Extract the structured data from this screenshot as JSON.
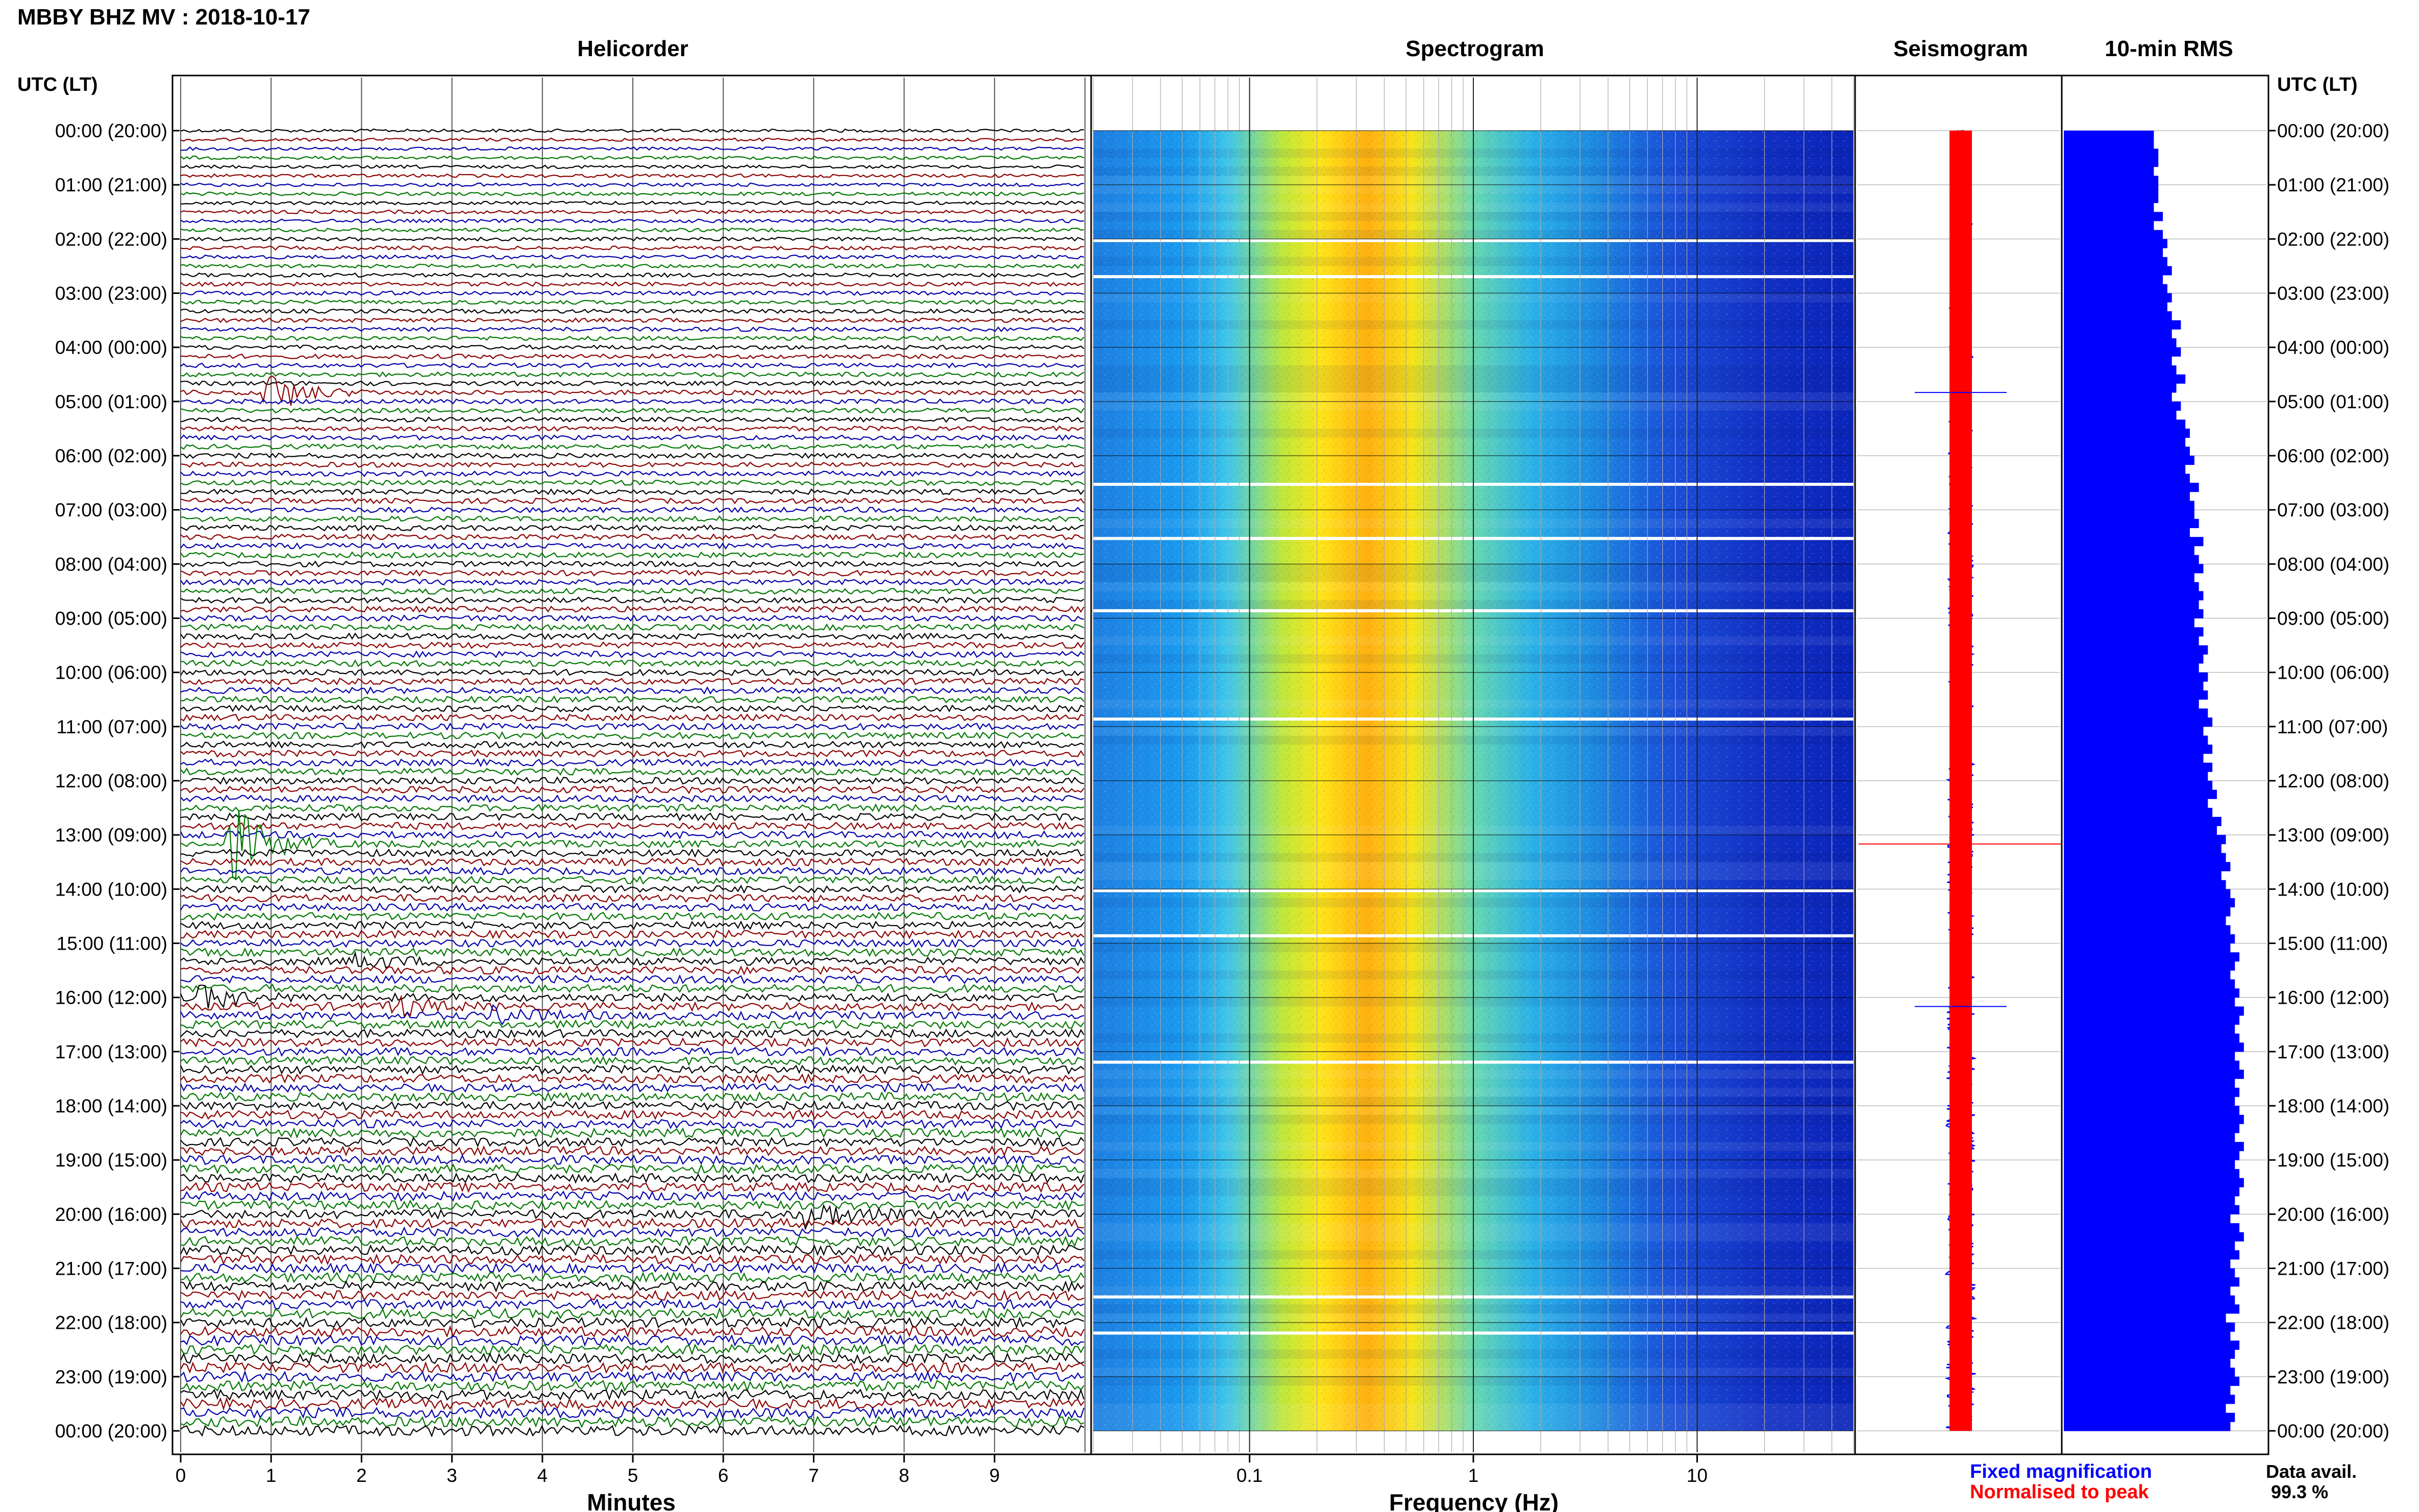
{
  "page_title": "MBBY BHZ MV : 2018-10-17",
  "panel_titles": {
    "helicorder": "Helicorder",
    "spectrogram": "Spectrogram",
    "seismogram": "Seismogram",
    "rms": "10-min RMS"
  },
  "axis_labels": {
    "left_header": "UTC (LT)",
    "right_header": "UTC (LT)",
    "helicorder_x": "Minutes",
    "spectrogram_x": "Frequency (Hz)"
  },
  "legend": {
    "fixed": "Fixed magnification",
    "normalised": "Normalised to peak",
    "data_avail_label": "Data avail.",
    "data_avail_value": "99.3 %"
  },
  "colors": {
    "helicorder_traces": [
      "#000000",
      "#8b0000",
      "#0000aa",
      "#007700"
    ],
    "rms_bar": "#0000ff",
    "seis_fixed": "#0000ff",
    "seis_normalised": "#ff0000",
    "legend_fixed": "#0000ff",
    "legend_normalised": "#ff0000"
  },
  "chart_data": [
    {
      "type": "line",
      "name": "helicorder",
      "title": "Helicorder",
      "xlabel": "Minutes",
      "x_ticks": [
        "0",
        "1",
        "2",
        "3",
        "4",
        "5",
        "6",
        "7",
        "8",
        "9"
      ],
      "xlim": [
        0,
        10
      ],
      "y_ticks": [
        "00:00 (20:00)",
        "01:00 (21:00)",
        "02:00 (22:00)",
        "03:00 (23:00)",
        "04:00 (00:00)",
        "05:00 (01:00)",
        "06:00 (02:00)",
        "07:00 (03:00)",
        "08:00 (04:00)",
        "09:00 (05:00)",
        "10:00 (06:00)",
        "11:00 (07:00)",
        "12:00 (08:00)",
        "13:00 (09:00)",
        "14:00 (10:00)",
        "15:00 (11:00)",
        "16:00 (12:00)",
        "17:00 (13:00)",
        "18:00 (14:00)",
        "19:00 (15:00)",
        "20:00 (16:00)",
        "21:00 (17:00)",
        "22:00 (18:00)",
        "23:00 (19:00)",
        "00:00 (20:00)"
      ],
      "lines_per_hour": 6,
      "events": [
        {
          "time": "04:50",
          "minute": 1.0,
          "amplitude": 3.5
        },
        {
          "time": "13:10",
          "minute": 0.6,
          "amplitude": 6.0
        },
        {
          "time": "15:20",
          "minute": 2.0,
          "amplitude": 1.2
        },
        {
          "time": "16:00",
          "minute": 0.3,
          "amplitude": 1.8
        },
        {
          "time": "16:10",
          "minute": 2.4,
          "amplitude": 1.5
        },
        {
          "time": "16:20",
          "minute": 3.5,
          "amplitude": 1.5
        },
        {
          "time": "20:00",
          "minute": 7.0,
          "amplitude": 2.2
        }
      ]
    },
    {
      "type": "heatmap",
      "name": "spectrogram",
      "title": "Spectrogram",
      "xlabel": "Frequency (Hz)",
      "x_scale": "log",
      "xlim": [
        0.02,
        50
      ],
      "x_ticks": [
        "0.1",
        "1",
        "10"
      ],
      "peak_frequency_band_hz": [
        0.2,
        0.5
      ]
    },
    {
      "type": "line",
      "name": "seismogram",
      "title": "Seismogram",
      "series": [
        "Fixed magnification",
        "Normalised to peak"
      ],
      "spikes": [
        {
          "time": "04:50"
        },
        {
          "time": "13:10"
        },
        {
          "time": "16:10"
        }
      ]
    },
    {
      "type": "bar",
      "name": "rms",
      "title": "10-min RMS",
      "orientation": "horizontal",
      "values": [
        0.2,
        0.2,
        0.21,
        0.21,
        0.2,
        0.21,
        0.21,
        0.21,
        0.2,
        0.22,
        0.2,
        0.22,
        0.23,
        0.22,
        0.23,
        0.24,
        0.22,
        0.23,
        0.24,
        0.23,
        0.24,
        0.26,
        0.24,
        0.25,
        0.26,
        0.24,
        0.25,
        0.27,
        0.25,
        0.24,
        0.26,
        0.25,
        0.27,
        0.28,
        0.27,
        0.28,
        0.29,
        0.27,
        0.28,
        0.3,
        0.28,
        0.29,
        0.29,
        0.3,
        0.28,
        0.31,
        0.29,
        0.3,
        0.31,
        0.29,
        0.3,
        0.31,
        0.3,
        0.31,
        0.29,
        0.31,
        0.3,
        0.32,
        0.31,
        0.3,
        0.32,
        0.31,
        0.32,
        0.3,
        0.32,
        0.33,
        0.31,
        0.32,
        0.33,
        0.31,
        0.33,
        0.32,
        0.33,
        0.34,
        0.32,
        0.33,
        0.35,
        0.34,
        0.36,
        0.35,
        0.36,
        0.37,
        0.35,
        0.36,
        0.37,
        0.38,
        0.37,
        0.36,
        0.37,
        0.38,
        0.37,
        0.39,
        0.38,
        0.37,
        0.38,
        0.39,
        0.38,
        0.4,
        0.39,
        0.38,
        0.39,
        0.4,
        0.38,
        0.39,
        0.4,
        0.38,
        0.39,
        0.38,
        0.39,
        0.4,
        0.39,
        0.38,
        0.4,
        0.39,
        0.38,
        0.39,
        0.4,
        0.39,
        0.38,
        0.39,
        0.37,
        0.39,
        0.4,
        0.38,
        0.39,
        0.37,
        0.38,
        0.39,
        0.37,
        0.38,
        0.39,
        0.36,
        0.38,
        0.37,
        0.39,
        0.38,
        0.37,
        0.38,
        0.39,
        0.37,
        0.38,
        0.36,
        0.38,
        0.37
      ],
      "xlim": [
        0,
        0.45
      ]
    }
  ]
}
